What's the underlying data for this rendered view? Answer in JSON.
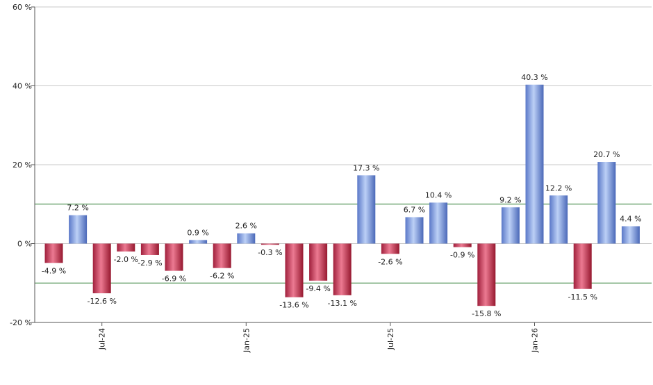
{
  "chart_data": {
    "type": "bar",
    "title": "",
    "xlabel": "",
    "ylabel": "",
    "ylim": [
      -20,
      60
    ],
    "y_ticks": [
      -20,
      0,
      20,
      40,
      60
    ],
    "y_tick_labels": [
      "-20 %",
      "0 %",
      "20 %",
      "40 %",
      "60 %"
    ],
    "value_suffix": " %",
    "grid": "horizontal",
    "reference_lines": [
      10,
      -10
    ],
    "x_axis_labels": [
      {
        "label": "Jul-24",
        "index": 2
      },
      {
        "label": "Jan-25",
        "index": 8
      },
      {
        "label": "Jul-25",
        "index": 14
      },
      {
        "label": "Jan-26",
        "index": 20
      }
    ],
    "values": [
      -4.9,
      7.2,
      -12.6,
      -2.0,
      -2.9,
      -6.9,
      0.9,
      -6.2,
      2.6,
      -0.3,
      -13.6,
      -9.4,
      -13.1,
      17.3,
      -2.6,
      6.7,
      10.4,
      -0.9,
      -15.8,
      9.2,
      40.3,
      12.2,
      -11.5,
      20.7,
      4.4
    ],
    "value_labels": [
      "-4.9 %",
      "7.2 %",
      "-12.6 %",
      "-2.0 %",
      "-2.9 %",
      "-6.9 %",
      "0.9 %",
      "-6.2 %",
      "2.6 %",
      "-0.3 %",
      "-13.6 %",
      "-9.4 %",
      "-13.1 %",
      "17.3 %",
      "-2.6 %",
      "6.7 %",
      "10.4 %",
      "-0.9 %",
      "-15.8 %",
      "9.2 %",
      "40.3 %",
      "12.2 %",
      "-11.5 %",
      "20.7 %",
      "4.4 %"
    ],
    "colors": {
      "positive": "#7a9be0",
      "negative": "#c8304e",
      "grid": "#c8c8c8",
      "reference": "#2e7d32",
      "axis": "#555555"
    }
  }
}
